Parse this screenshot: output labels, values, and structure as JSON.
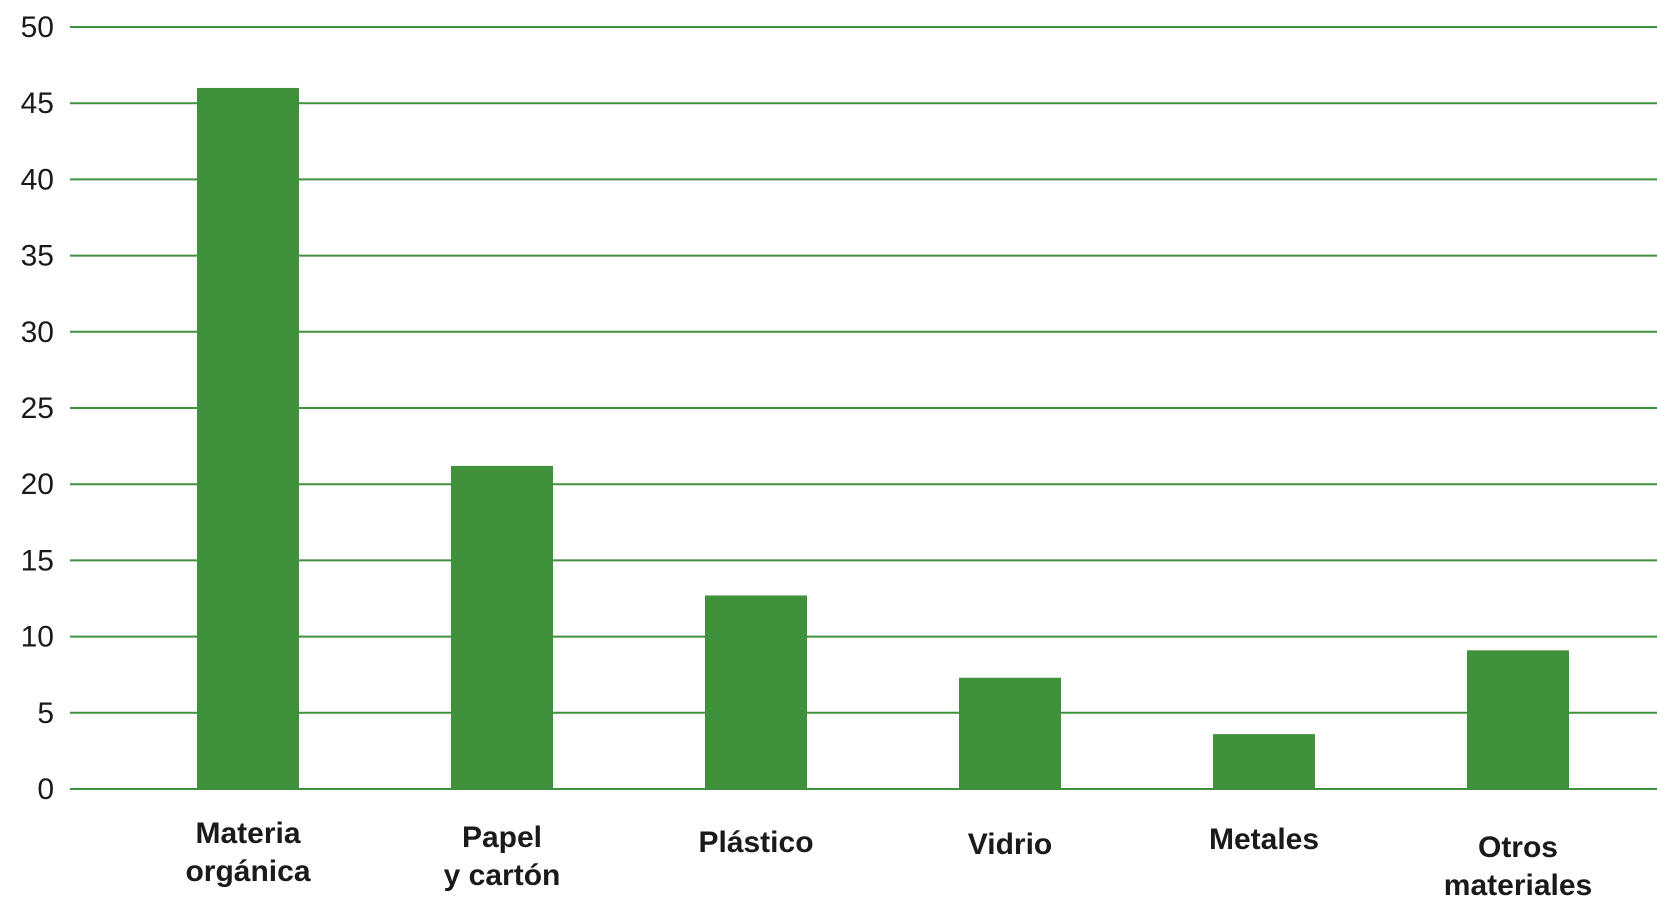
{
  "chart_data": {
    "type": "bar",
    "categories": [
      [
        "Materia",
        "orgánica"
      ],
      [
        "Papel",
        "y cartón"
      ],
      [
        "Plástico"
      ],
      [
        "Vidrio"
      ],
      [
        "Metales"
      ],
      [
        "Otros",
        "materiales"
      ]
    ],
    "values": [
      46,
      21.2,
      12.7,
      7.3,
      3.6,
      9.1
    ],
    "ylim": [
      0,
      50
    ],
    "yticks": [
      "0",
      "5",
      "10",
      "15",
      "20",
      "25",
      "30",
      "35",
      "40",
      "45",
      "50"
    ],
    "grid": true,
    "colors": {
      "bar": "#3f913c",
      "grid": "#3f913c",
      "text": "#1a1a1a"
    }
  }
}
